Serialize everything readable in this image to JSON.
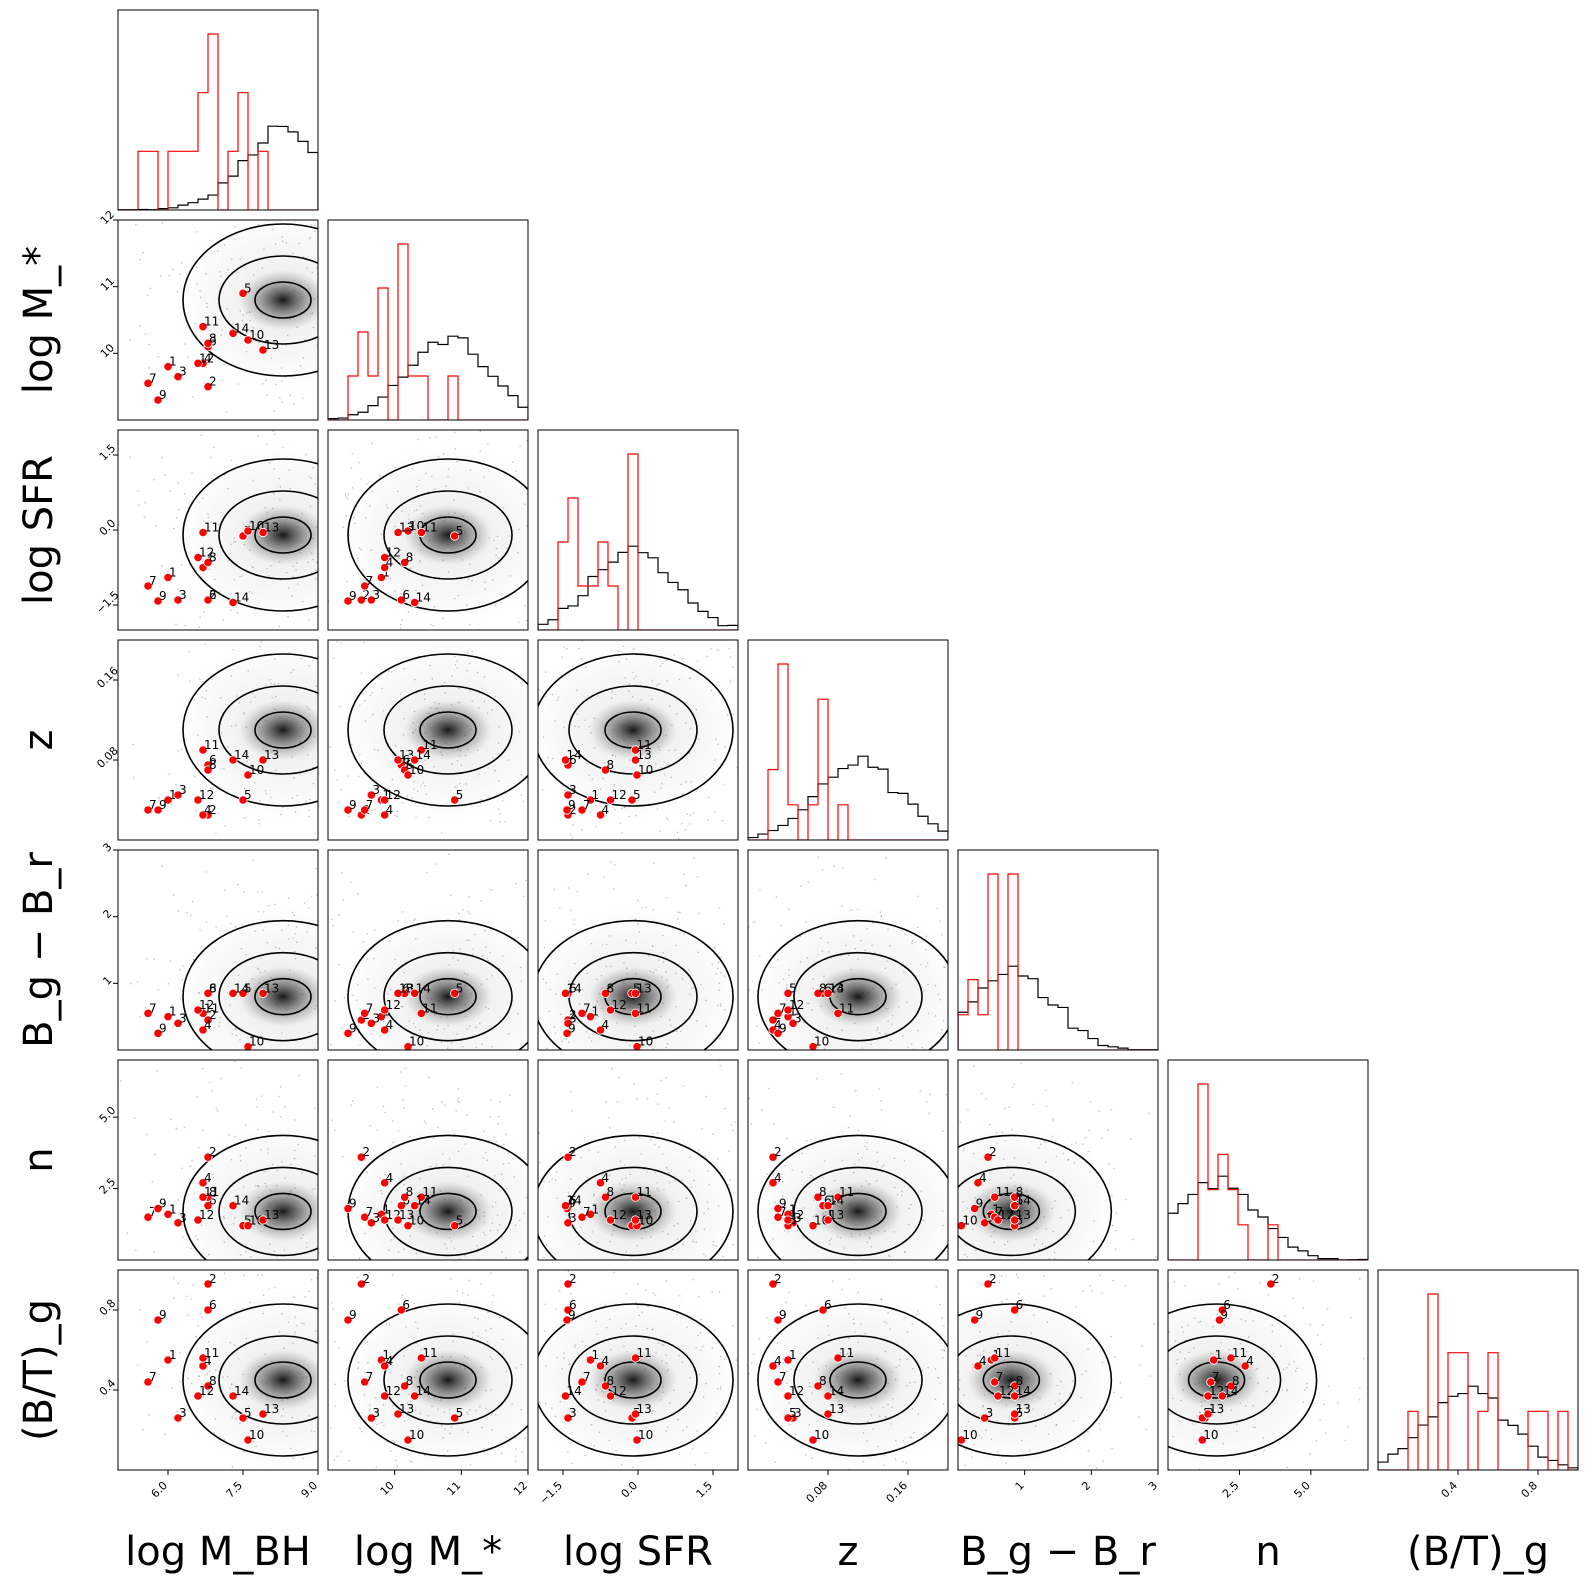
{
  "chart_data": {
    "type": "scatter",
    "subtype": "corner-plot",
    "variables": [
      {
        "key": "mbh",
        "label": "log M_BH",
        "range": [
          5.0,
          9.0
        ],
        "ticks": [
          6.0,
          7.5,
          9.0
        ],
        "tick_labels": [
          "6.0",
          "7.5",
          "9.0"
        ]
      },
      {
        "key": "mstar",
        "label": "log M_*",
        "range": [
          9.0,
          12.0
        ],
        "ticks": [
          10,
          11,
          12
        ],
        "tick_labels": [
          "10",
          "11",
          "12"
        ]
      },
      {
        "key": "sfr",
        "label": "log  SFR",
        "range": [
          -2.0,
          2.0
        ],
        "ticks": [
          -1.5,
          0.0,
          1.5
        ],
        "tick_labels": [
          "−1.5",
          "0.0",
          "1.5"
        ]
      },
      {
        "key": "z",
        "label": "z",
        "range": [
          0.0,
          0.2
        ],
        "ticks": [
          0.08,
          0.16
        ],
        "tick_labels": [
          "0.08",
          "0.16"
        ]
      },
      {
        "key": "bgbr",
        "label": "B_g − B_r",
        "range": [
          0.0,
          3.0
        ],
        "ticks": [
          1,
          2,
          3
        ],
        "tick_labels": [
          "1",
          "2",
          "3"
        ]
      },
      {
        "key": "n",
        "label": "n",
        "range": [
          0.0,
          7.0
        ],
        "ticks": [
          2.5,
          5.0
        ],
        "tick_labels": [
          "2.5",
          "5.0"
        ]
      },
      {
        "key": "bt",
        "label": "(B/T)_g",
        "range": [
          0.0,
          1.0
        ],
        "ticks": [
          0.4,
          0.8
        ],
        "tick_labels": [
          "0.4",
          "0.8"
        ]
      }
    ],
    "galaxies": [
      {
        "id": "1",
        "mbh": 6.0,
        "mstar": 9.8,
        "sfr": -0.95,
        "z": 0.04,
        "bgbr": 0.5,
        "n": 1.6,
        "bt": 0.55
      },
      {
        "id": "2",
        "mbh": 6.8,
        "mstar": 9.5,
        "sfr": -1.4,
        "z": 0.025,
        "bgbr": 0.45,
        "n": 3.6,
        "bt": 0.93
      },
      {
        "id": "3",
        "mbh": 6.2,
        "mstar": 9.65,
        "sfr": -1.4,
        "z": 0.045,
        "bgbr": 0.4,
        "n": 1.3,
        "bt": 0.26
      },
      {
        "id": "4",
        "mbh": 6.7,
        "mstar": 9.85,
        "sfr": -0.75,
        "z": 0.025,
        "bgbr": 0.3,
        "n": 2.7,
        "bt": 0.52
      },
      {
        "id": "5",
        "mbh": 7.5,
        "mstar": 10.9,
        "sfr": -0.12,
        "z": 0.04,
        "bgbr": 0.85,
        "n": 1.2,
        "bt": 0.26
      },
      {
        "id": "6",
        "mbh": 6.8,
        "mstar": 10.1,
        "sfr": -1.4,
        "z": 0.075,
        "bgbr": 0.85,
        "n": 1.9,
        "bt": 0.8
      },
      {
        "id": "7",
        "mbh": 5.6,
        "mstar": 9.55,
        "sfr": -1.12,
        "z": 0.03,
        "bgbr": 0.55,
        "n": 1.5,
        "bt": 0.44
      },
      {
        "id": "8",
        "mbh": 6.8,
        "mstar": 10.15,
        "sfr": -0.65,
        "z": 0.07,
        "bgbr": 0.85,
        "n": 2.2,
        "bt": 0.42
      },
      {
        "id": "9",
        "mbh": 5.8,
        "mstar": 9.3,
        "sfr": -1.42,
        "z": 0.03,
        "bgbr": 0.25,
        "n": 1.8,
        "bt": 0.75
      },
      {
        "id": "10",
        "mbh": 7.6,
        "mstar": 10.2,
        "sfr": -0.02,
        "z": 0.065,
        "bgbr": 0.05,
        "n": 1.2,
        "bt": 0.15
      },
      {
        "id": "11",
        "mbh": 6.7,
        "mstar": 10.4,
        "sfr": -0.05,
        "z": 0.09,
        "bgbr": 0.55,
        "n": 2.2,
        "bt": 0.56
      },
      {
        "id": "12",
        "mbh": 6.6,
        "mstar": 9.85,
        "sfr": -0.55,
        "z": 0.04,
        "bgbr": 0.6,
        "n": 1.4,
        "bt": 0.37
      },
      {
        "id": "13",
        "mbh": 7.9,
        "mstar": 10.05,
        "sfr": -0.05,
        "z": 0.08,
        "bgbr": 0.85,
        "n": 1.4,
        "bt": 0.28
      },
      {
        "id": "14",
        "mbh": 7.3,
        "mstar": 10.3,
        "sfr": -1.45,
        "z": 0.08,
        "bgbr": 0.85,
        "n": 1.9,
        "bt": 0.37
      }
    ],
    "population_peaks": {
      "mbh": 8.3,
      "mstar": 10.8,
      "sfr": -0.1,
      "z": 0.11,
      "bgbr": 0.8,
      "n": 1.7,
      "bt": 0.45
    },
    "colors": {
      "galaxy_marker": "#ff0000",
      "galaxy_histogram": "#ff0000",
      "population": "#000000"
    },
    "grid": false,
    "legend": "none"
  }
}
